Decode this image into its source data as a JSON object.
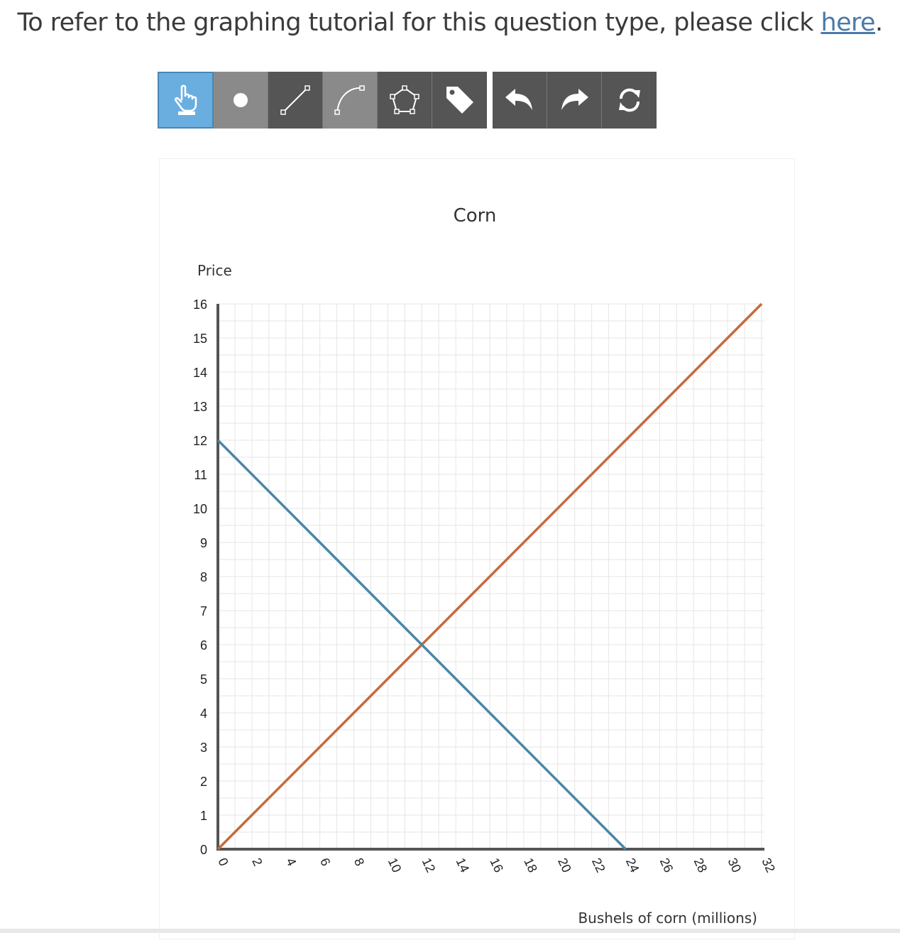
{
  "instruction": {
    "text": "To refer to the graphing tutorial for this question type, please click ",
    "link": "here",
    "period": "."
  },
  "toolbar": {
    "tools": [
      {
        "name": "pointer-tool",
        "icon": "hand-pointer-icon",
        "active": true
      },
      {
        "name": "point-tool",
        "icon": "dot-icon"
      },
      {
        "name": "line-tool",
        "icon": "line-segment-icon"
      },
      {
        "name": "curve-tool",
        "icon": "curve-icon"
      },
      {
        "name": "polygon-tool",
        "icon": "pentagon-icon"
      },
      {
        "name": "label-tool",
        "icon": "tag-icon"
      }
    ],
    "history": [
      {
        "name": "undo-button",
        "icon": "undo-arrow-icon"
      },
      {
        "name": "redo-button",
        "icon": "redo-arrow-icon"
      },
      {
        "name": "reset-button",
        "icon": "refresh-icon"
      }
    ],
    "colors": {
      "dark": "#555555",
      "light": "#8a8a8a",
      "active": "#6aaee0"
    }
  },
  "chart_data": {
    "type": "line",
    "title": "Corn",
    "xlabel": "Bushels of corn (millions)",
    "ylabel": "Price",
    "xlim": [
      0,
      32
    ],
    "ylim": [
      0,
      16
    ],
    "x_ticks": [
      0,
      2,
      4,
      6,
      8,
      10,
      12,
      14,
      16,
      18,
      20,
      22,
      24,
      26,
      28,
      30,
      32
    ],
    "y_ticks": [
      0,
      1,
      2,
      3,
      4,
      5,
      6,
      7,
      8,
      9,
      10,
      11,
      12,
      13,
      14,
      15,
      16
    ],
    "grid": true,
    "series": [
      {
        "color": "#c8693a",
        "points": [
          [
            0,
            0
          ],
          [
            32,
            16
          ]
        ]
      },
      {
        "color": "#4a86a8",
        "points": [
          [
            0,
            12
          ],
          [
            24,
            0
          ]
        ]
      }
    ]
  }
}
